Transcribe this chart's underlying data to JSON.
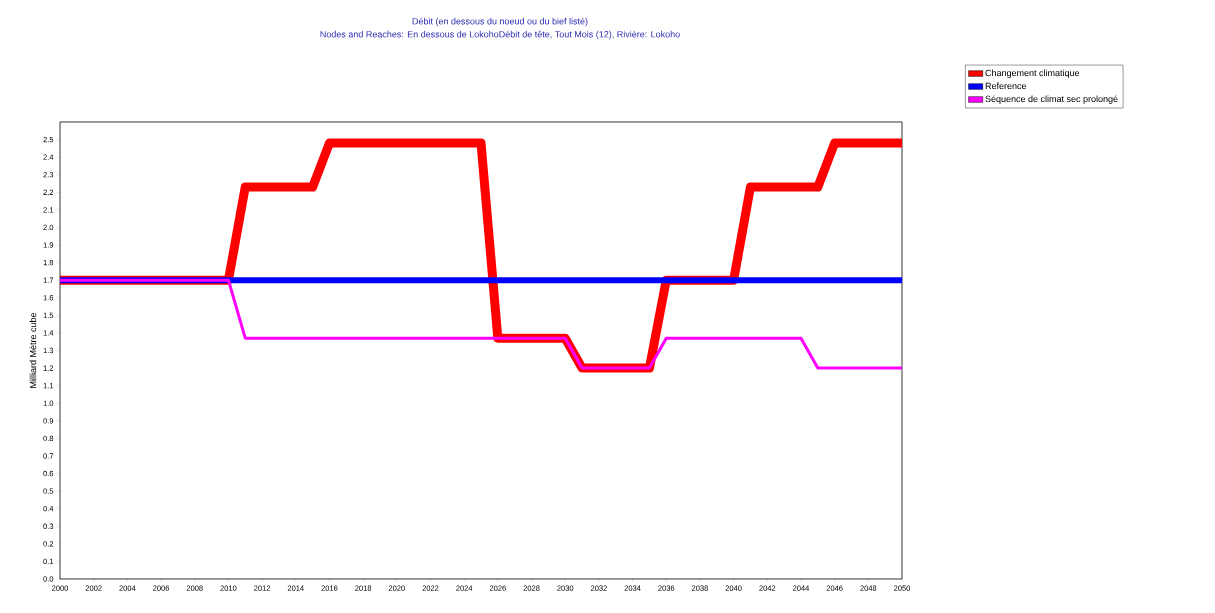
{
  "chart_data": {
    "type": "line",
    "title": "Débit (en dessous du noeud ou du bief listé)",
    "subtitle": "Nodes and Reaches: En dessous de LokohoDébit de tête,  Tout Mois (12),  Rivière: Lokoho",
    "ylabel": "Milliard Mètre cube",
    "x": [
      2000,
      2001,
      2002,
      2003,
      2004,
      2005,
      2006,
      2007,
      2008,
      2009,
      2010,
      2011,
      2012,
      2013,
      2014,
      2015,
      2016,
      2017,
      2018,
      2019,
      2020,
      2021,
      2022,
      2023,
      2024,
      2025,
      2026,
      2027,
      2028,
      2029,
      2030,
      2031,
      2032,
      2033,
      2034,
      2035,
      2036,
      2037,
      2038,
      2039,
      2040,
      2041,
      2042,
      2043,
      2044,
      2045,
      2046,
      2047,
      2048,
      2049,
      2050
    ],
    "series": [
      {
        "name": "Changement climatique",
        "color": "#ff0000",
        "values": [
          1.7,
          1.7,
          1.7,
          1.7,
          1.7,
          1.7,
          1.7,
          1.7,
          1.7,
          1.7,
          1.7,
          2.23,
          2.23,
          2.23,
          2.23,
          2.23,
          2.48,
          2.48,
          2.48,
          2.48,
          2.48,
          2.48,
          2.48,
          2.48,
          2.48,
          2.48,
          1.37,
          1.37,
          1.37,
          1.37,
          1.37,
          1.2,
          1.2,
          1.2,
          1.2,
          1.2,
          1.7,
          1.7,
          1.7,
          1.7,
          1.7,
          2.23,
          2.23,
          2.23,
          2.23,
          2.23,
          2.48,
          2.48,
          2.48,
          2.48,
          2.48
        ]
      },
      {
        "name": "Reference",
        "color": "#0000ff",
        "values": [
          1.7,
          1.7,
          1.7,
          1.7,
          1.7,
          1.7,
          1.7,
          1.7,
          1.7,
          1.7,
          1.7,
          1.7,
          1.7,
          1.7,
          1.7,
          1.7,
          1.7,
          1.7,
          1.7,
          1.7,
          1.7,
          1.7,
          1.7,
          1.7,
          1.7,
          1.7,
          1.7,
          1.7,
          1.7,
          1.7,
          1.7,
          1.7,
          1.7,
          1.7,
          1.7,
          1.7,
          1.7,
          1.7,
          1.7,
          1.7,
          1.7,
          1.7,
          1.7,
          1.7,
          1.7,
          1.7,
          1.7,
          1.7,
          1.7,
          1.7,
          1.7
        ]
      },
      {
        "name": "Séquence de climat sec prolongé",
        "color": "#ff00ff",
        "values": [
          1.7,
          1.7,
          1.7,
          1.7,
          1.7,
          1.7,
          1.7,
          1.7,
          1.7,
          1.7,
          1.7,
          1.37,
          1.37,
          1.37,
          1.37,
          1.37,
          1.37,
          1.37,
          1.37,
          1.37,
          1.37,
          1.37,
          1.37,
          1.37,
          1.37,
          1.37,
          1.37,
          1.37,
          1.37,
          1.37,
          1.37,
          1.2,
          1.2,
          1.2,
          1.2,
          1.2,
          1.37,
          1.37,
          1.37,
          1.37,
          1.37,
          1.37,
          1.37,
          1.37,
          1.37,
          1.2,
          1.2,
          1.2,
          1.2,
          1.2,
          1.2
        ]
      }
    ],
    "xlim": [
      2000,
      2050
    ],
    "ylim": [
      0,
      2.6
    ],
    "xticks": [
      2000,
      2002,
      2004,
      2006,
      2008,
      2010,
      2012,
      2014,
      2016,
      2018,
      2020,
      2022,
      2024,
      2026,
      2028,
      2030,
      2032,
      2034,
      2036,
      2038,
      2040,
      2042,
      2044,
      2046,
      2048,
      2050
    ],
    "yticks": [
      {
        "value": 0,
        "label": "0.0"
      },
      0.1,
      0.2,
      0.3,
      0.4,
      0.5,
      0.6,
      0.7,
      0.8,
      0.9,
      {
        "value": 1,
        "label": "1.0"
      },
      1.1,
      1.2,
      1.3,
      1.4,
      1.5,
      1.6,
      1.7,
      1.8,
      1.9,
      {
        "value": 2,
        "label": "2.0"
      },
      2.1,
      2.2,
      2.3,
      2.4,
      2.5
    ],
    "legend": "top right",
    "marker": "none",
    "line_style": "solid"
  }
}
